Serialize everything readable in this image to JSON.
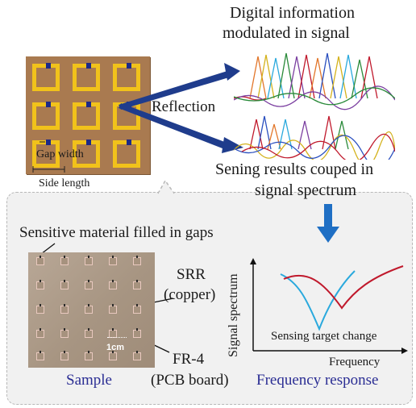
{
  "top": {
    "digital_info_line1": "Digital information",
    "digital_info_line2": "modulated in signal",
    "reflection_label": "Reflection",
    "gap_width_label": "Gap width",
    "side_length_label": "Side length",
    "sensing_results_line1": "Sening results couped in",
    "sensing_results_line2": "signal spectrum"
  },
  "bottom": {
    "sensitive_material_label": "Sensitive material filled in gaps",
    "srr_line1": "SRR",
    "srr_line2": "(copper)",
    "fr4_line1": "FR-4",
    "fr4_line2": "(PCB board)",
    "scale_label": "1cm",
    "sample_caption": "Sample",
    "freq_response_caption": "Frequency response",
    "y_axis_label": "Signal spectrum",
    "x_axis_label": "Frequency",
    "sensing_change_label": "Sensing target change"
  },
  "colors": {
    "pcb": "#a97a50",
    "ring": "#f1c21b",
    "gap": "#1c2a88",
    "arrow": "#1f3c8c",
    "curve_red": "#c0192c",
    "curve_blue": "#2aa9dd",
    "down_arrow": "#1f6fc4",
    "caption_blue": "#2b2e94"
  }
}
